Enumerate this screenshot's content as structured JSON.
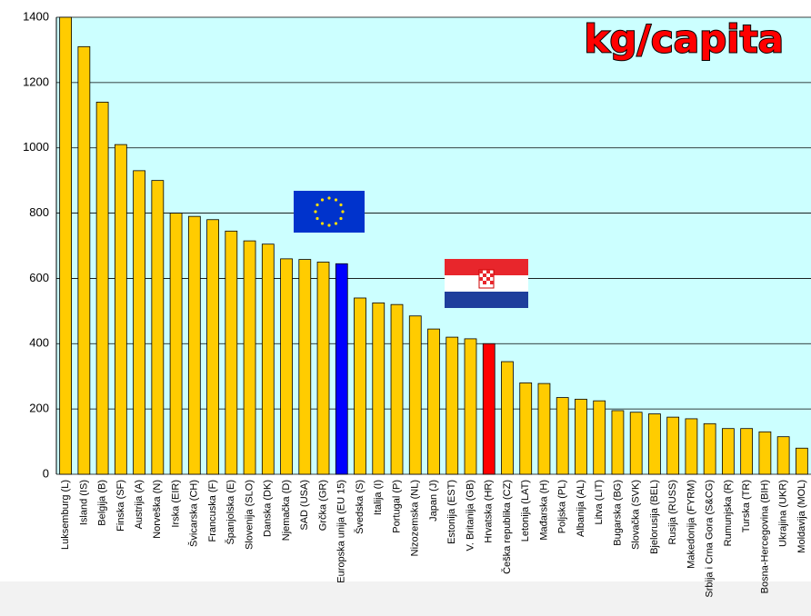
{
  "chart_data": {
    "type": "bar",
    "title": "kg/capita",
    "categories": [
      "Luksemburg (L)",
      "Island (IS)",
      "Belgija (B)",
      "Finska (SF)",
      "Austrija (A)",
      "Norveška (N)",
      "Irska (EIR)",
      "Švicarska (CH)",
      "Francuska (F)",
      "Španjolska (E)",
      "Slovenija (SLO)",
      "Danska (DK)",
      "Njemačka (D)",
      "SAD (USA)",
      "Grčka (GR)",
      "Europska unija (EU 15)",
      "Švedska (S)",
      "Italija (I)",
      "Portugal (P)",
      "Nizozemska (NL)",
      "Japan (J)",
      "Estonija (EST)",
      "V. Britanija (GB)",
      "Hrvatska (HR)",
      "Češka republika (CZ)",
      "Letonija (LAT)",
      "Mađarska (H)",
      "Poljska (PL)",
      "Albanija (AL)",
      "Litva (LIT)",
      "Bugarska (BG)",
      "Slovačka (SVK)",
      "Bjelorusija (BEL)",
      "Rusija (RUSS)",
      "Makedonija (FYRM)",
      "Srbija i Crna Gora (S&CG)",
      "Rumunjska (R)",
      "Turska (TR)",
      "Bosna-Hercegovina (BIH)",
      "Ukrajina (UKR)",
      "Moldavija (MOL)"
    ],
    "values": [
      1400,
      1310,
      1140,
      1010,
      930,
      900,
      800,
      790,
      780,
      745,
      715,
      705,
      660,
      658,
      650,
      645,
      540,
      525,
      520,
      485,
      445,
      420,
      415,
      400,
      345,
      280,
      278,
      235,
      230,
      225,
      195,
      190,
      185,
      175,
      170,
      155,
      140,
      140,
      130,
      115,
      80
    ],
    "colors": [
      "#ffcc00",
      "#ffcc00",
      "#ffcc00",
      "#ffcc00",
      "#ffcc00",
      "#ffcc00",
      "#ffcc00",
      "#ffcc00",
      "#ffcc00",
      "#ffcc00",
      "#ffcc00",
      "#ffcc00",
      "#ffcc00",
      "#ffcc00",
      "#ffcc00",
      "#0000ff",
      "#ffcc00",
      "#ffcc00",
      "#ffcc00",
      "#ffcc00",
      "#ffcc00",
      "#ffcc00",
      "#ffcc00",
      "#ff0000",
      "#ffcc00",
      "#ffcc00",
      "#ffcc00",
      "#ffcc00",
      "#ffcc00",
      "#ffcc00",
      "#ffcc00",
      "#ffcc00",
      "#ffcc00",
      "#ffcc00",
      "#ffcc00",
      "#ffcc00",
      "#ffcc00",
      "#ffcc00",
      "#ffcc00",
      "#ffcc00",
      "#ffcc00"
    ],
    "ylim": [
      0,
      1400
    ],
    "yticks": [
      0,
      200,
      400,
      600,
      800,
      1000,
      1200,
      1400
    ],
    "grid": true
  }
}
